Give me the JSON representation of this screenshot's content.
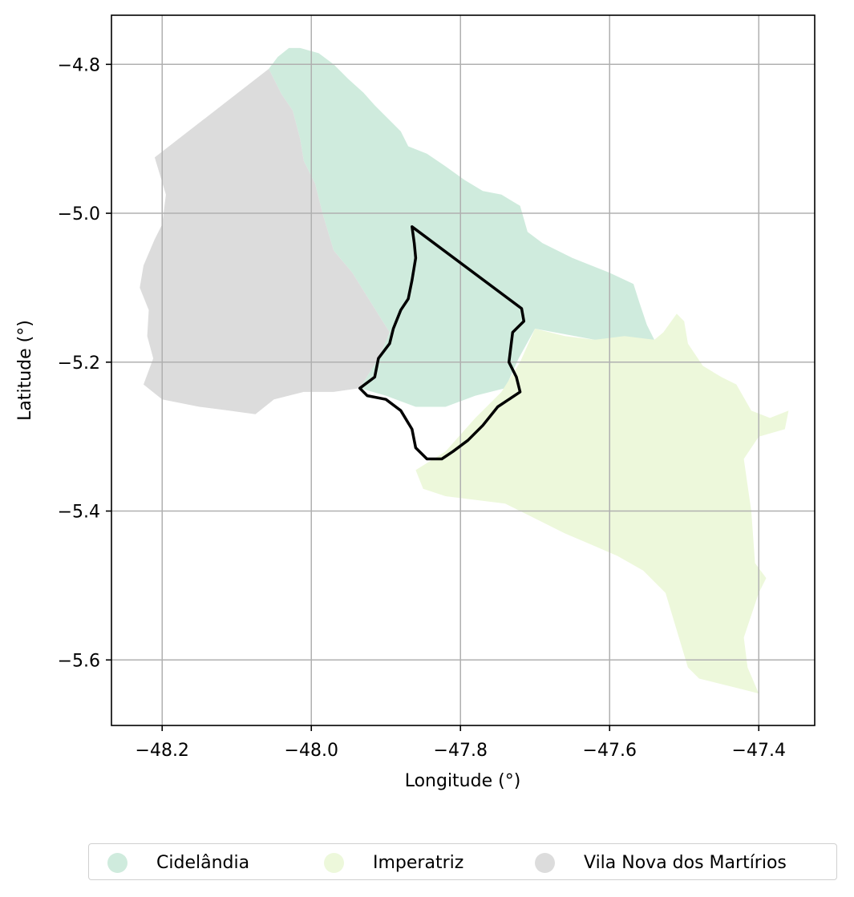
{
  "chart_data": {
    "type": "map",
    "xlabel": "Longitude (°)",
    "ylabel": "Latitude (°)",
    "xlim": [
      -48.268,
      -47.325
    ],
    "ylim": [
      -5.688,
      -4.734
    ],
    "x_ticks": [
      -48.2,
      -48.0,
      -47.8,
      -47.6,
      -47.4
    ],
    "x_tick_labels": [
      "−48.2",
      "−48.0",
      "−47.8",
      "−47.6",
      "−47.4"
    ],
    "y_ticks": [
      -4.8,
      -5.0,
      -5.2,
      -5.4,
      -5.6
    ],
    "y_tick_labels": [
      "−4.8",
      "−5.0",
      "−5.2",
      "−5.4",
      "−5.6"
    ],
    "grid": true,
    "legend_placement": "bottom-center",
    "regions": [
      {
        "name": "Cidelândia",
        "color": "#cfebdd",
        "polygon": [
          [
            -48.057,
            -4.806
          ],
          [
            -48.045,
            -4.79
          ],
          [
            -48.03,
            -4.778
          ],
          [
            -48.015,
            -4.778
          ],
          [
            -47.99,
            -4.785
          ],
          [
            -47.97,
            -4.8
          ],
          [
            -47.95,
            -4.82
          ],
          [
            -47.93,
            -4.838
          ],
          [
            -47.915,
            -4.855
          ],
          [
            -47.9,
            -4.87
          ],
          [
            -47.88,
            -4.89
          ],
          [
            -47.87,
            -4.91
          ],
          [
            -47.845,
            -4.92
          ],
          [
            -47.82,
            -4.937
          ],
          [
            -47.795,
            -4.955
          ],
          [
            -47.77,
            -4.97
          ],
          [
            -47.745,
            -4.975
          ],
          [
            -47.72,
            -4.99
          ],
          [
            -47.71,
            -5.025
          ],
          [
            -47.69,
            -5.04
          ],
          [
            -47.65,
            -5.06
          ],
          [
            -47.6,
            -5.08
          ],
          [
            -47.568,
            -5.095
          ],
          [
            -47.56,
            -5.12
          ],
          [
            -47.55,
            -5.15
          ],
          [
            -47.54,
            -5.17
          ],
          [
            -47.62,
            -5.17
          ],
          [
            -47.7,
            -5.155
          ],
          [
            -47.722,
            -5.195
          ],
          [
            -47.74,
            -5.235
          ],
          [
            -47.78,
            -5.245
          ],
          [
            -47.82,
            -5.26
          ],
          [
            -47.86,
            -5.26
          ],
          [
            -47.9,
            -5.245
          ],
          [
            -47.935,
            -5.235
          ],
          [
            -47.91,
            -5.195
          ],
          [
            -47.895,
            -5.16
          ],
          [
            -47.92,
            -5.12
          ],
          [
            -47.945,
            -5.08
          ],
          [
            -47.97,
            -5.05
          ],
          [
            -47.985,
            -5.0
          ],
          [
            -47.995,
            -4.96
          ],
          [
            -48.01,
            -4.93
          ],
          [
            -48.015,
            -4.9
          ],
          [
            -48.025,
            -4.862
          ],
          [
            -48.04,
            -4.84
          ],
          [
            -48.057,
            -4.806
          ]
        ]
      },
      {
        "name": "Imperatriz",
        "color": "#edf8db",
        "polygon": [
          [
            -47.7,
            -5.155
          ],
          [
            -47.66,
            -5.165
          ],
          [
            -47.62,
            -5.17
          ],
          [
            -47.58,
            -5.165
          ],
          [
            -47.54,
            -5.17
          ],
          [
            -47.528,
            -5.16
          ],
          [
            -47.51,
            -5.135
          ],
          [
            -47.5,
            -5.145
          ],
          [
            -47.495,
            -5.175
          ],
          [
            -47.475,
            -5.205
          ],
          [
            -47.45,
            -5.22
          ],
          [
            -47.43,
            -5.23
          ],
          [
            -47.41,
            -5.265
          ],
          [
            -47.385,
            -5.275
          ],
          [
            -47.36,
            -5.265
          ],
          [
            -47.365,
            -5.29
          ],
          [
            -47.4,
            -5.3
          ],
          [
            -47.42,
            -5.33
          ],
          [
            -47.41,
            -5.4
          ],
          [
            -47.405,
            -5.47
          ],
          [
            -47.39,
            -5.49
          ],
          [
            -47.4,
            -5.51
          ],
          [
            -47.41,
            -5.54
          ],
          [
            -47.42,
            -5.57
          ],
          [
            -47.415,
            -5.61
          ],
          [
            -47.4,
            -5.645
          ],
          [
            -47.42,
            -5.64
          ],
          [
            -47.44,
            -5.635
          ],
          [
            -47.46,
            -5.63
          ],
          [
            -47.48,
            -5.625
          ],
          [
            -47.495,
            -5.61
          ],
          [
            -47.51,
            -5.56
          ],
          [
            -47.525,
            -5.51
          ],
          [
            -47.555,
            -5.48
          ],
          [
            -47.59,
            -5.46
          ],
          [
            -47.625,
            -5.445
          ],
          [
            -47.66,
            -5.43
          ],
          [
            -47.7,
            -5.41
          ],
          [
            -47.74,
            -5.39
          ],
          [
            -47.78,
            -5.385
          ],
          [
            -47.82,
            -5.38
          ],
          [
            -47.85,
            -5.37
          ],
          [
            -47.86,
            -5.345
          ],
          [
            -47.82,
            -5.32
          ],
          [
            -47.78,
            -5.275
          ],
          [
            -47.745,
            -5.24
          ],
          [
            -47.72,
            -5.2
          ],
          [
            -47.7,
            -5.155
          ]
        ]
      },
      {
        "name": "Vila Nova dos Martírios",
        "color": "#dcdcdc",
        "polygon": [
          [
            -48.057,
            -4.806
          ],
          [
            -48.21,
            -4.925
          ],
          [
            -48.195,
            -4.975
          ],
          [
            -48.2,
            -5.015
          ],
          [
            -48.21,
            -5.035
          ],
          [
            -48.225,
            -5.07
          ],
          [
            -48.23,
            -5.1
          ],
          [
            -48.218,
            -5.13
          ],
          [
            -48.22,
            -5.165
          ],
          [
            -48.212,
            -5.195
          ],
          [
            -48.225,
            -5.23
          ],
          [
            -48.2,
            -5.25
          ],
          [
            -48.15,
            -5.26
          ],
          [
            -48.11,
            -5.265
          ],
          [
            -48.075,
            -5.27
          ],
          [
            -48.05,
            -5.25
          ],
          [
            -48.01,
            -5.24
          ],
          [
            -47.97,
            -5.24
          ],
          [
            -47.935,
            -5.235
          ],
          [
            -47.91,
            -5.195
          ],
          [
            -47.895,
            -5.16
          ],
          [
            -47.92,
            -5.12
          ],
          [
            -47.945,
            -5.08
          ],
          [
            -47.97,
            -5.05
          ],
          [
            -47.985,
            -5.0
          ],
          [
            -47.995,
            -4.96
          ],
          [
            -48.01,
            -4.93
          ],
          [
            -48.015,
            -4.9
          ],
          [
            -48.025,
            -4.862
          ],
          [
            -48.04,
            -4.84
          ],
          [
            -48.057,
            -4.806
          ]
        ]
      }
    ],
    "highlight_outline": {
      "color": "#000000",
      "polygon": [
        [
          -47.865,
          -5.018
        ],
        [
          -47.718,
          -5.128
        ],
        [
          -47.715,
          -5.145
        ],
        [
          -47.73,
          -5.16
        ],
        [
          -47.735,
          -5.2
        ],
        [
          -47.725,
          -5.22
        ],
        [
          -47.72,
          -5.24
        ],
        [
          -47.75,
          -5.26
        ],
        [
          -47.77,
          -5.285
        ],
        [
          -47.79,
          -5.305
        ],
        [
          -47.81,
          -5.32
        ],
        [
          -47.825,
          -5.33
        ],
        [
          -47.845,
          -5.33
        ],
        [
          -47.86,
          -5.315
        ],
        [
          -47.865,
          -5.29
        ],
        [
          -47.88,
          -5.265
        ],
        [
          -47.9,
          -5.25
        ],
        [
          -47.925,
          -5.245
        ],
        [
          -47.935,
          -5.235
        ],
        [
          -47.915,
          -5.22
        ],
        [
          -47.91,
          -5.195
        ],
        [
          -47.895,
          -5.175
        ],
        [
          -47.89,
          -5.155
        ],
        [
          -47.88,
          -5.13
        ],
        [
          -47.87,
          -5.115
        ],
        [
          -47.865,
          -5.09
        ],
        [
          -47.86,
          -5.06
        ],
        [
          -47.862,
          -5.04
        ],
        [
          -47.865,
          -5.018
        ]
      ]
    }
  },
  "legend": {
    "items": [
      {
        "label": "Cidelândia",
        "color": "#cfebdd"
      },
      {
        "label": "Imperatriz",
        "color": "#edf8db"
      },
      {
        "label": "Vila Nova dos Martírios",
        "color": "#dcdcdc"
      }
    ]
  }
}
